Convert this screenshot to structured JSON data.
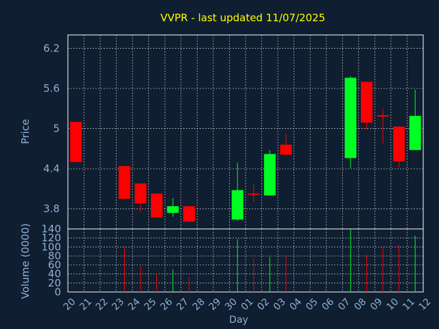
{
  "colors": {
    "background": "#0f1e30",
    "plot_background": "#0f1e30",
    "grid": "#c8c8c8",
    "title": "#ffff00",
    "axis_text": "#8fb0d8",
    "up": "#00ff22",
    "down": "#ff0000"
  },
  "chart_data": {
    "type": "candlestick",
    "title": "VVPR - last updated 11/07/2025",
    "xlabel": "Day",
    "grid": true,
    "x_ticks": [
      "20",
      "21",
      "22",
      "23",
      "24",
      "25",
      "26",
      "27",
      "28",
      "29",
      "30",
      "01",
      "02",
      "03",
      "04",
      "05",
      "06",
      "07",
      "08",
      "09",
      "10",
      "11",
      "12"
    ],
    "price_panel": {
      "ylabel": "Price",
      "ylim": [
        3.5,
        6.4
      ],
      "y_ticks": [
        "6.2",
        "5.6",
        "5",
        "4.4",
        "3.8"
      ],
      "y_tick_values": [
        6.2,
        5.6,
        5.0,
        4.4,
        3.8
      ]
    },
    "volume_panel": {
      "ylabel": "Volume (0000)",
      "ylim": [
        0,
        140
      ],
      "y_ticks": [
        "140",
        "120",
        "100",
        "80",
        "60",
        "40",
        "20",
        "0"
      ],
      "y_tick_values": [
        140,
        120,
        100,
        80,
        60,
        40,
        20,
        0
      ]
    },
    "candles": [
      {
        "day": "20",
        "open": 5.1,
        "high": 5.1,
        "low": 4.5,
        "close": 4.5,
        "volume": 0
      },
      {
        "day": "23",
        "open": 4.44,
        "high": 4.44,
        "low": 3.95,
        "close": 3.95,
        "volume": 100
      },
      {
        "day": "24",
        "open": 4.18,
        "high": 4.18,
        "low": 3.75,
        "close": 3.88,
        "volume": 58
      },
      {
        "day": "25",
        "open": 4.03,
        "high": 4.03,
        "low": 3.67,
        "close": 3.67,
        "volume": 40
      },
      {
        "day": "26",
        "open": 3.74,
        "high": 3.96,
        "low": 3.68,
        "close": 3.84,
        "volume": 50
      },
      {
        "day": "27",
        "open": 3.84,
        "high": 3.84,
        "low": 3.61,
        "close": 3.61,
        "volume": 33
      },
      {
        "day": "30",
        "open": 3.64,
        "high": 4.49,
        "low": 3.62,
        "close": 4.08,
        "volume": 117
      },
      {
        "day": "01",
        "open": 4.03,
        "high": 4.16,
        "low": 3.9,
        "close": 4.01,
        "volume": 75
      },
      {
        "day": "02",
        "open": 4.0,
        "high": 4.68,
        "low": 4.0,
        "close": 4.62,
        "volume": 78
      },
      {
        "day": "03",
        "open": 4.76,
        "high": 4.93,
        "low": 4.61,
        "close": 4.61,
        "volume": 83
      },
      {
        "day": "07",
        "open": 4.56,
        "high": 5.78,
        "low": 4.41,
        "close": 5.76,
        "volume": 140
      },
      {
        "day": "08",
        "open": 5.7,
        "high": 5.7,
        "low": 4.98,
        "close": 5.09,
        "volume": 80
      },
      {
        "day": "09",
        "open": 5.2,
        "high": 5.3,
        "low": 4.78,
        "close": 5.19,
        "volume": 100
      },
      {
        "day": "10",
        "open": 5.03,
        "high": 5.03,
        "low": 4.42,
        "close": 4.51,
        "volume": 105
      },
      {
        "day": "11",
        "open": 4.68,
        "high": 5.58,
        "low": 4.68,
        "close": 5.19,
        "volume": 125
      }
    ]
  }
}
